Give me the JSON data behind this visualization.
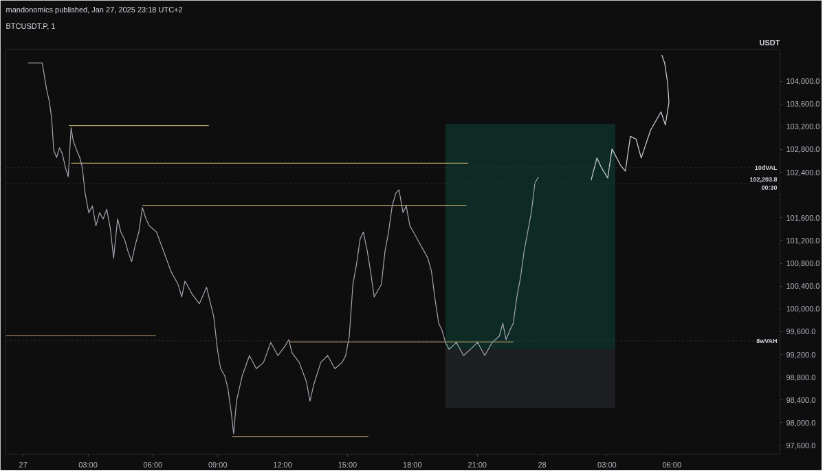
{
  "chart_data": {
    "type": "line",
    "title": "mandonomics published, Jan 27, 2025 23:18 UTC+2",
    "subtitle": "BTCUSDT.P, 1",
    "ylabel": "USDT",
    "xlim": [
      "2025-01-26T23:12",
      "2025-01-28T11:00"
    ],
    "ylim": [
      97450,
      104550
    ],
    "xticks": [
      {
        "value": "2025-01-27T00:00",
        "label": "27"
      },
      {
        "value": "2025-01-27T03:00",
        "label": "03:00"
      },
      {
        "value": "2025-01-27T06:00",
        "label": "06:00"
      },
      {
        "value": "2025-01-27T09:00",
        "label": "09:00"
      },
      {
        "value": "2025-01-27T12:00",
        "label": "12:00"
      },
      {
        "value": "2025-01-27T15:00",
        "label": "15:00"
      },
      {
        "value": "2025-01-27T18:00",
        "label": "18:00"
      },
      {
        "value": "2025-01-27T21:00",
        "label": "21:00"
      },
      {
        "value": "2025-01-28T00:00",
        "label": "28"
      },
      {
        "value": "2025-01-28T03:00",
        "label": "03:00"
      },
      {
        "value": "2025-01-28T06:00",
        "label": "06:00"
      }
    ],
    "yticks": [
      {
        "value": 97600,
        "label": "97,600.0"
      },
      {
        "value": 98000,
        "label": "98,000.0"
      },
      {
        "value": 98400,
        "label": "98,400.0"
      },
      {
        "value": 98800,
        "label": "98,800.0"
      },
      {
        "value": 99200,
        "label": "99,200.0"
      },
      {
        "value": 99600,
        "label": "99,600.0"
      },
      {
        "value": 100000,
        "label": "100,000.0"
      },
      {
        "value": 100400,
        "label": "100,400.0"
      },
      {
        "value": 100800,
        "label": "100,800.0"
      },
      {
        "value": 101200,
        "label": "101,200.0"
      },
      {
        "value": 101600,
        "label": "101,600.0"
      },
      {
        "value": 102000,
        "label": null
      },
      {
        "value": 102400,
        "label": "102,400.0"
      },
      {
        "value": 102800,
        "label": "102,800.0"
      },
      {
        "value": 103200,
        "label": "103,200.0"
      },
      {
        "value": 103600,
        "label": "103,600.0"
      },
      {
        "value": 104000,
        "label": "104,000.0"
      }
    ],
    "grid": false,
    "line_style": "solid",
    "marker": "none",
    "series": [
      {
        "type": "area",
        "color": "#0d2a24",
        "x": [
          "2025-01-27T19:32",
          "2025-01-28T03:23"
        ],
        "values": [
          null,
          null
        ],
        "upper": [
          103250,
          103250
        ],
        "lower": [
          99290,
          99290
        ]
      },
      {
        "type": "area",
        "color": "#1e1f22",
        "x": [
          "2025-01-27T19:32",
          "2025-01-28T03:23"
        ],
        "values": [
          null,
          null
        ],
        "upper": [
          99290,
          99290
        ],
        "lower": [
          98260,
          98260
        ]
      },
      {
        "type": "line",
        "color": "#b8a36a",
        "x": [
          "2025-01-27T02:07",
          "2025-01-27T08:35"
        ],
        "values": [
          103220,
          103220
        ]
      },
      {
        "type": "line",
        "color": "#b8a36a",
        "x": [
          "2025-01-27T02:13",
          "2025-01-27T20:35"
        ],
        "values": [
          102560,
          102560
        ]
      },
      {
        "type": "line",
        "color": "#b8a36a",
        "x": [
          "2025-01-27T05:31",
          "2025-01-27T20:30"
        ],
        "values": [
          101820,
          101820
        ]
      },
      {
        "type": "line",
        "color": "#b8a36a",
        "x": [
          "2025-01-26T23:12",
          "2025-01-27T06:08"
        ],
        "values": [
          99530,
          99530
        ]
      },
      {
        "type": "line",
        "color": "#b8a36a",
        "x": [
          "2025-01-27T12:17",
          "2025-01-27T22:40"
        ],
        "values": [
          99420,
          99420
        ]
      },
      {
        "type": "line",
        "color": "#b8a36a",
        "x": [
          "2025-01-27T09:40",
          "2025-01-27T15:58"
        ],
        "values": [
          97760,
          97760
        ]
      },
      {
        "color": "#a3a6af",
        "x": [
          "2025-01-27T00:14",
          "2025-01-27T00:53",
          "2025-01-27T01:05",
          "2025-01-27T01:13",
          "2025-01-27T01:19",
          "2025-01-27T01:25",
          "2025-01-27T01:33",
          "2025-01-27T01:41",
          "2025-01-27T01:49",
          "2025-01-27T01:57",
          "2025-01-27T02:05",
          "2025-01-27T02:13",
          "2025-01-27T02:19",
          "2025-01-27T02:29",
          "2025-01-27T02:37",
          "2025-01-27T02:44",
          "2025-01-27T02:52",
          "2025-01-27T03:02",
          "2025-01-27T03:12",
          "2025-01-27T03:22",
          "2025-01-27T03:32",
          "2025-01-27T03:42",
          "2025-01-27T03:52",
          "2025-01-27T04:02",
          "2025-01-27T04:11",
          "2025-01-27T04:22",
          "2025-01-27T04:31",
          "2025-01-27T04:41",
          "2025-01-27T04:51",
          "2025-01-27T05:01",
          "2025-01-27T05:11",
          "2025-01-27T05:21",
          "2025-01-27T05:31",
          "2025-01-27T05:41",
          "2025-01-27T05:50",
          "2025-01-27T06:10",
          "2025-01-27T06:30",
          "2025-01-27T06:50",
          "2025-01-27T07:10",
          "2025-01-27T07:20",
          "2025-01-27T07:29",
          "2025-01-27T07:49",
          "2025-01-27T08:09",
          "2025-01-27T08:29",
          "2025-01-27T08:49",
          "2025-01-27T08:59",
          "2025-01-27T09:08",
          "2025-01-27T09:19",
          "2025-01-27T09:28",
          "2025-01-27T09:38",
          "2025-01-27T09:44",
          "2025-01-27T09:52",
          "2025-01-27T10:08",
          "2025-01-27T10:28",
          "2025-01-27T10:47",
          "2025-01-27T11:07",
          "2025-01-27T11:27",
          "2025-01-27T11:47",
          "2025-01-27T12:07",
          "2025-01-27T12:17",
          "2025-01-27T12:26",
          "2025-01-27T12:46",
          "2025-01-27T13:06",
          "2025-01-27T13:16",
          "2025-01-27T13:26",
          "2025-01-27T13:46",
          "2025-01-27T14:05",
          "2025-01-27T14:25",
          "2025-01-27T14:45",
          "2025-01-27T14:55",
          "2025-01-27T15:05",
          "2025-01-27T15:15",
          "2025-01-27T15:25",
          "2025-01-27T15:35",
          "2025-01-27T15:44",
          "2025-01-27T15:55",
          "2025-01-27T16:04",
          "2025-01-27T16:14",
          "2025-01-27T16:24",
          "2025-01-27T16:34",
          "2025-01-27T16:44",
          "2025-01-27T16:54",
          "2025-01-27T17:04",
          "2025-01-27T17:14",
          "2025-01-27T17:23",
          "2025-01-27T17:34",
          "2025-01-27T17:43",
          "2025-01-27T17:53",
          "2025-01-27T18:03",
          "2025-01-27T18:23",
          "2025-01-27T18:43",
          "2025-01-27T18:53",
          "2025-01-27T19:02",
          "2025-01-27T19:13",
          "2025-01-27T19:22",
          "2025-01-27T19:32",
          "2025-01-27T19:42",
          "2025-01-27T20:02",
          "2025-01-27T20:22",
          "2025-01-27T20:41",
          "2025-01-27T21:01",
          "2025-01-27T21:21",
          "2025-01-27T21:41",
          "2025-01-27T22:01",
          "2025-01-27T22:11",
          "2025-01-27T22:20",
          "2025-01-27T22:31",
          "2025-01-27T22:40",
          "2025-01-27T22:50",
          "2025-01-27T23:00",
          "2025-01-27T23:10",
          "2025-01-27T23:20",
          "2025-01-27T23:30",
          "2025-01-27T23:40",
          "2025-01-27T23:50"
        ],
        "values": [
          104320,
          104320,
          103860,
          103630,
          103350,
          102780,
          102660,
          102830,
          102720,
          102490,
          102320,
          103180,
          102950,
          102780,
          102660,
          102490,
          102030,
          101690,
          101810,
          101460,
          101690,
          101580,
          101750,
          101410,
          100890,
          101580,
          101350,
          101230,
          101010,
          100830,
          101120,
          101350,
          101780,
          101580,
          101460,
          101350,
          101010,
          100660,
          100430,
          100210,
          100490,
          100260,
          100090,
          100380,
          99860,
          99290,
          98950,
          98830,
          98610,
          98150,
          97810,
          98380,
          98830,
          99180,
          98950,
          99060,
          99410,
          99180,
          99350,
          99460,
          99230,
          99060,
          98720,
          98380,
          98660,
          99060,
          99180,
          98950,
          99060,
          99180,
          99520,
          100430,
          100780,
          101230,
          101350,
          101010,
          100660,
          100210,
          100320,
          100430,
          101010,
          101350,
          101810,
          102030,
          102090,
          101690,
          101810,
          101460,
          101350,
          101120,
          100890,
          100660,
          100210,
          99750,
          99630,
          99410,
          99290,
          99410,
          99180,
          99290,
          99410,
          99180,
          99410,
          99520,
          99750,
          99460,
          99630,
          99750,
          100210,
          100550,
          101010,
          101350,
          101690,
          102210,
          102320
        ]
      },
      {
        "type": "line",
        "color": "#d1d4dc",
        "x": [
          "2025-01-28T02:16",
          "2025-01-28T02:32",
          "2025-01-28T02:44",
          "2025-01-28T03:02",
          "2025-01-28T03:14",
          "2025-01-28T03:37",
          "2025-01-28T03:51",
          "2025-01-28T04:05",
          "2025-01-28T04:21",
          "2025-01-28T04:35",
          "2025-01-28T05:01",
          "2025-01-28T05:30",
          "2025-01-28T05:42",
          "2025-01-28T05:52",
          "2025-01-28T05:48",
          "2025-01-28T05:40",
          "2025-01-28T05:32"
        ],
        "values": [
          102260,
          102650,
          102490,
          102300,
          102810,
          102530,
          102420,
          103030,
          102980,
          102650,
          103140,
          103460,
          103230,
          103630,
          103980,
          104320,
          104460
        ]
      }
    ],
    "ref_lines": [
      {
        "axis": "y",
        "value": 102480,
        "label": "10dVAL",
        "color": "#3a3b3e",
        "line_style": "dotted"
      },
      {
        "axis": "y",
        "value": 99440,
        "label": "8wVAH",
        "color": "#3a3b3e",
        "line_style": "dotted"
      },
      {
        "axis": "y",
        "value": 102203.8,
        "label": "102,203.8\n00:30",
        "color": "#3a3b3e",
        "line_style": "dotted"
      }
    ]
  }
}
